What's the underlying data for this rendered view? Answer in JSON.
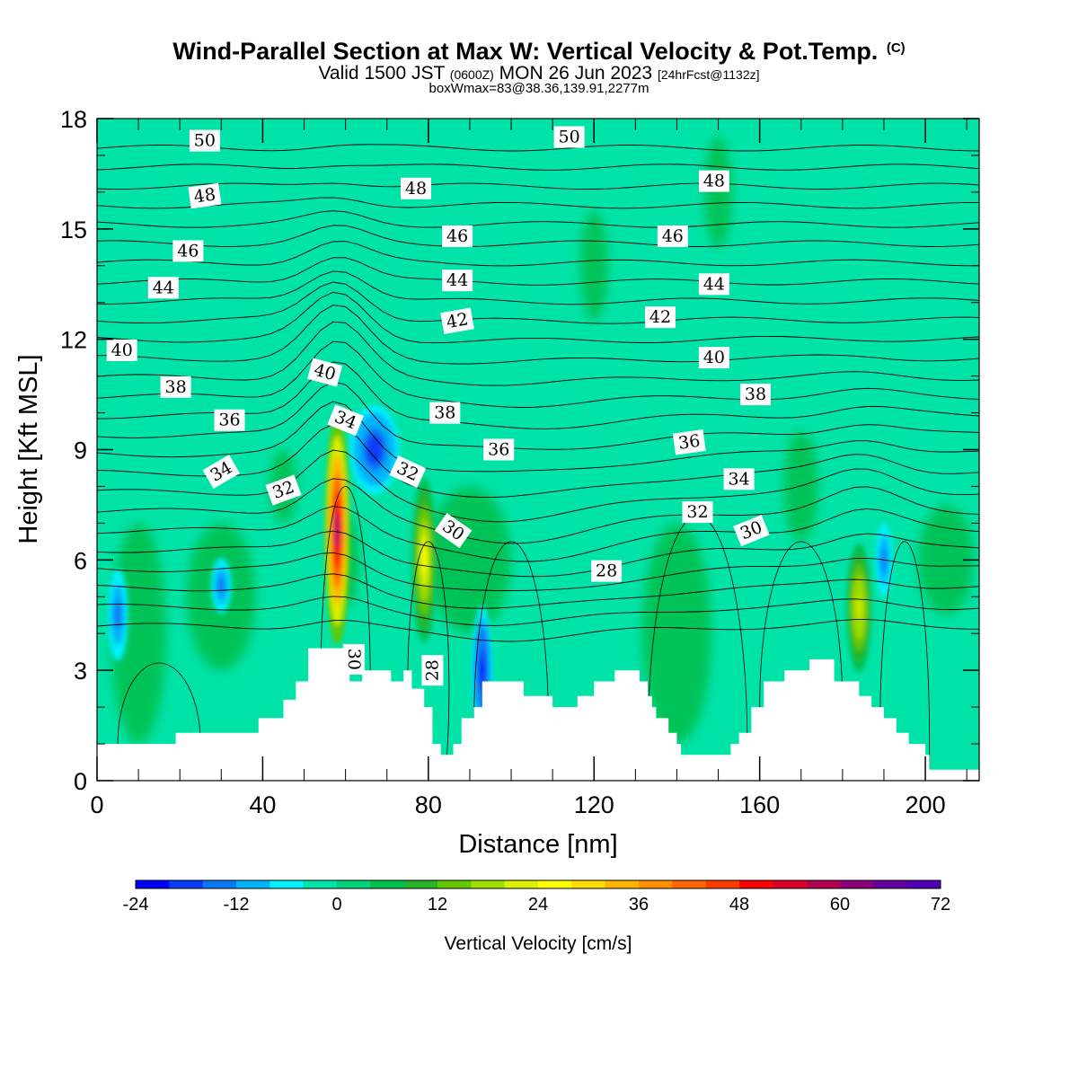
{
  "title": {
    "main": "Wind-Parallel Section at Max W: Vertical Velocity & Pot.Temp.",
    "copyright": "(C)",
    "valid_prefix": "Valid 1500 JST",
    "valid_utc": "(0600Z)",
    "valid_date": "MON 26 Jun 2023",
    "forecast": "[24hrFcst@1132z]",
    "box_info": "boxWmax=83@38.36,139.91,2277m"
  },
  "colors": {
    "background": "#00e3a8",
    "terrain": "#ffffff",
    "contour": "#000000"
  },
  "chart_data": {
    "type": "heatmap",
    "xlabel": "Distance [nm]",
    "ylabel": "Height [Kft MSL]",
    "xlim": [
      0,
      213
    ],
    "ylim": [
      0,
      18
    ],
    "x_ticks": [
      0,
      40,
      80,
      120,
      160,
      200
    ],
    "y_ticks": [
      0,
      3,
      6,
      9,
      12,
      15,
      18
    ],
    "colorbar": {
      "label": "Vertical Velocity [cm/s]",
      "tick_labels": [
        "-24",
        "-12",
        "0",
        "12",
        "24",
        "36",
        "48",
        "60",
        "72"
      ],
      "min": -24,
      "max": 72,
      "step": 4,
      "colors": [
        "#0000ff",
        "#0a3cf8",
        "#0a78f5",
        "#00b4fa",
        "#00f0ff",
        "#00e3a8",
        "#00d27a",
        "#00c050",
        "#28b428",
        "#64c800",
        "#a0dc00",
        "#dcf000",
        "#ffff00",
        "#ffdc00",
        "#ffb400",
        "#ff9000",
        "#ff6400",
        "#ff3c00",
        "#ff0000",
        "#dc0028",
        "#b40050",
        "#8c0078",
        "#6400a0",
        "#5000b4"
      ]
    },
    "theta_contours_K": [
      28,
      30,
      32,
      34,
      36,
      38,
      40,
      42,
      44,
      46,
      48,
      50
    ],
    "contour_labels": [
      {
        "text": "50",
        "x": 26,
        "y": 17.4,
        "rot": 0
      },
      {
        "text": "50",
        "x": 114,
        "y": 17.5,
        "rot": 0
      },
      {
        "text": "48",
        "x": 26,
        "y": 15.9,
        "rot": -8
      },
      {
        "text": "48",
        "x": 77,
        "y": 16.1,
        "rot": 0
      },
      {
        "text": "48",
        "x": 149,
        "y": 16.3,
        "rot": 0
      },
      {
        "text": "46",
        "x": 22,
        "y": 14.4,
        "rot": 0
      },
      {
        "text": "46",
        "x": 87,
        "y": 14.8,
        "rot": 0
      },
      {
        "text": "46",
        "x": 139,
        "y": 14.8,
        "rot": 0
      },
      {
        "text": "44",
        "x": 16,
        "y": 13.4,
        "rot": 0
      },
      {
        "text": "44",
        "x": 87,
        "y": 13.6,
        "rot": 0
      },
      {
        "text": "44",
        "x": 149,
        "y": 13.5,
        "rot": 0
      },
      {
        "text": "42",
        "x": 87,
        "y": 12.5,
        "rot": -10
      },
      {
        "text": "42",
        "x": 136,
        "y": 12.6,
        "rot": 0
      },
      {
        "text": "40",
        "x": 6,
        "y": 11.7,
        "rot": 0
      },
      {
        "text": "40",
        "x": 55,
        "y": 11.1,
        "rot": 15
      },
      {
        "text": "40",
        "x": 149,
        "y": 11.5,
        "rot": 0
      },
      {
        "text": "38",
        "x": 19,
        "y": 10.7,
        "rot": 0
      },
      {
        "text": "38",
        "x": 84,
        "y": 10.0,
        "rot": 0
      },
      {
        "text": "38",
        "x": 159,
        "y": 10.5,
        "rot": 0
      },
      {
        "text": "36",
        "x": 32,
        "y": 9.8,
        "rot": 0
      },
      {
        "text": "36",
        "x": 97,
        "y": 9.0,
        "rot": 0
      },
      {
        "text": "36",
        "x": 143,
        "y": 9.2,
        "rot": -8
      },
      {
        "text": "34",
        "x": 30,
        "y": 8.4,
        "rot": -30
      },
      {
        "text": "34",
        "x": 60,
        "y": 9.8,
        "rot": 22
      },
      {
        "text": "34",
        "x": 155,
        "y": 8.2,
        "rot": 0
      },
      {
        "text": "32",
        "x": 45,
        "y": 7.9,
        "rot": -20
      },
      {
        "text": "32",
        "x": 75,
        "y": 8.4,
        "rot": 25
      },
      {
        "text": "32",
        "x": 145,
        "y": 7.3,
        "rot": 0
      },
      {
        "text": "30",
        "x": 86,
        "y": 6.8,
        "rot": 35
      },
      {
        "text": "30",
        "x": 158,
        "y": 6.8,
        "rot": -22
      },
      {
        "text": "30",
        "x": 62,
        "y": 3.3,
        "rot": 90
      },
      {
        "text": "28",
        "x": 123,
        "y": 5.7,
        "rot": 0
      },
      {
        "text": "28",
        "x": 81,
        "y": 3.0,
        "rot": -90
      }
    ],
    "terrain_profile_kft": [
      [
        0,
        1.0
      ],
      [
        19,
        1.0
      ],
      [
        19,
        1.3
      ],
      [
        39,
        1.3
      ],
      [
        39,
        1.7
      ],
      [
        45,
        1.7
      ],
      [
        45,
        2.2
      ],
      [
        48,
        2.2
      ],
      [
        48,
        2.7
      ],
      [
        51,
        2.7
      ],
      [
        51,
        3.6
      ],
      [
        61,
        3.6
      ],
      [
        61,
        2.7
      ],
      [
        64,
        2.7
      ],
      [
        64,
        3.0
      ],
      [
        71,
        3.0
      ],
      [
        71,
        2.7
      ],
      [
        74,
        2.7
      ],
      [
        74,
        3.0
      ],
      [
        76,
        3.0
      ],
      [
        76,
        2.5
      ],
      [
        79,
        2.5
      ],
      [
        79,
        2.0
      ],
      [
        81,
        2.0
      ],
      [
        81,
        1.0
      ],
      [
        83,
        1.0
      ],
      [
        83,
        0.7
      ],
      [
        86,
        0.7
      ],
      [
        86,
        1.0
      ],
      [
        88,
        1.0
      ],
      [
        88,
        1.7
      ],
      [
        91,
        1.7
      ],
      [
        91,
        2.0
      ],
      [
        93,
        2.0
      ],
      [
        93,
        2.7
      ],
      [
        103,
        2.7
      ],
      [
        103,
        2.3
      ],
      [
        110,
        2.3
      ],
      [
        110,
        2.0
      ],
      [
        116,
        2.0
      ],
      [
        116,
        2.3
      ],
      [
        120,
        2.3
      ],
      [
        120,
        2.7
      ],
      [
        125,
        2.7
      ],
      [
        125,
        3.0
      ],
      [
        131,
        3.0
      ],
      [
        131,
        2.7
      ],
      [
        133,
        2.7
      ],
      [
        133,
        2.3
      ],
      [
        134,
        2.3
      ],
      [
        134,
        2.0
      ],
      [
        134,
        2.0
      ],
      [
        135,
        2.0
      ],
      [
        135,
        1.7
      ],
      [
        138,
        1.7
      ],
      [
        138,
        1.3
      ],
      [
        140,
        1.3
      ],
      [
        140,
        1.0
      ],
      [
        141,
        1.0
      ],
      [
        141,
        0.7
      ],
      [
        153,
        0.7
      ],
      [
        153,
        1.0
      ],
      [
        155,
        1.0
      ],
      [
        155,
        1.3
      ],
      [
        158,
        1.3
      ],
      [
        158,
        2.0
      ],
      [
        161,
        2.0
      ],
      [
        161,
        2.7
      ],
      [
        166,
        2.7
      ],
      [
        166,
        3.0
      ],
      [
        172,
        3.0
      ],
      [
        172,
        3.3
      ],
      [
        178,
        3.3
      ],
      [
        178,
        2.7
      ],
      [
        184,
        2.7
      ],
      [
        184,
        2.3
      ],
      [
        187,
        2.3
      ],
      [
        187,
        2.0
      ],
      [
        190,
        2.0
      ],
      [
        190,
        1.7
      ],
      [
        193,
        1.7
      ],
      [
        193,
        1.3
      ],
      [
        196,
        1.3
      ],
      [
        196,
        1.0
      ],
      [
        200,
        1.0
      ],
      [
        200,
        0.7
      ],
      [
        201,
        0.7
      ],
      [
        201,
        0.3
      ],
      [
        213,
        0.3
      ]
    ],
    "updraft_cores": [
      {
        "x": 58,
        "y": 6.8,
        "w": 6,
        "h": 6.2,
        "peak_cms": 60
      },
      {
        "x": 79,
        "y": 6.0,
        "w": 6,
        "h": 4.5,
        "peak_cms": 26
      },
      {
        "x": 184,
        "y": 4.7,
        "w": 6,
        "h": 3.5,
        "peak_cms": 22
      }
    ],
    "downdraft_cores": [
      {
        "x": 67,
        "y": 9.0,
        "w": 12,
        "h": 2.4,
        "peak_cms": -20
      },
      {
        "x": 93,
        "y": 3.0,
        "w": 5,
        "h": 3.5,
        "peak_cms": -22
      },
      {
        "x": 5,
        "y": 4.5,
        "w": 5,
        "h": 2.5,
        "peak_cms": -14
      },
      {
        "x": 190,
        "y": 6.0,
        "w": 4,
        "h": 2.0,
        "peak_cms": -16
      },
      {
        "x": 30,
        "y": 5.3,
        "w": 5,
        "h": 1.5,
        "peak_cms": -14
      }
    ]
  }
}
